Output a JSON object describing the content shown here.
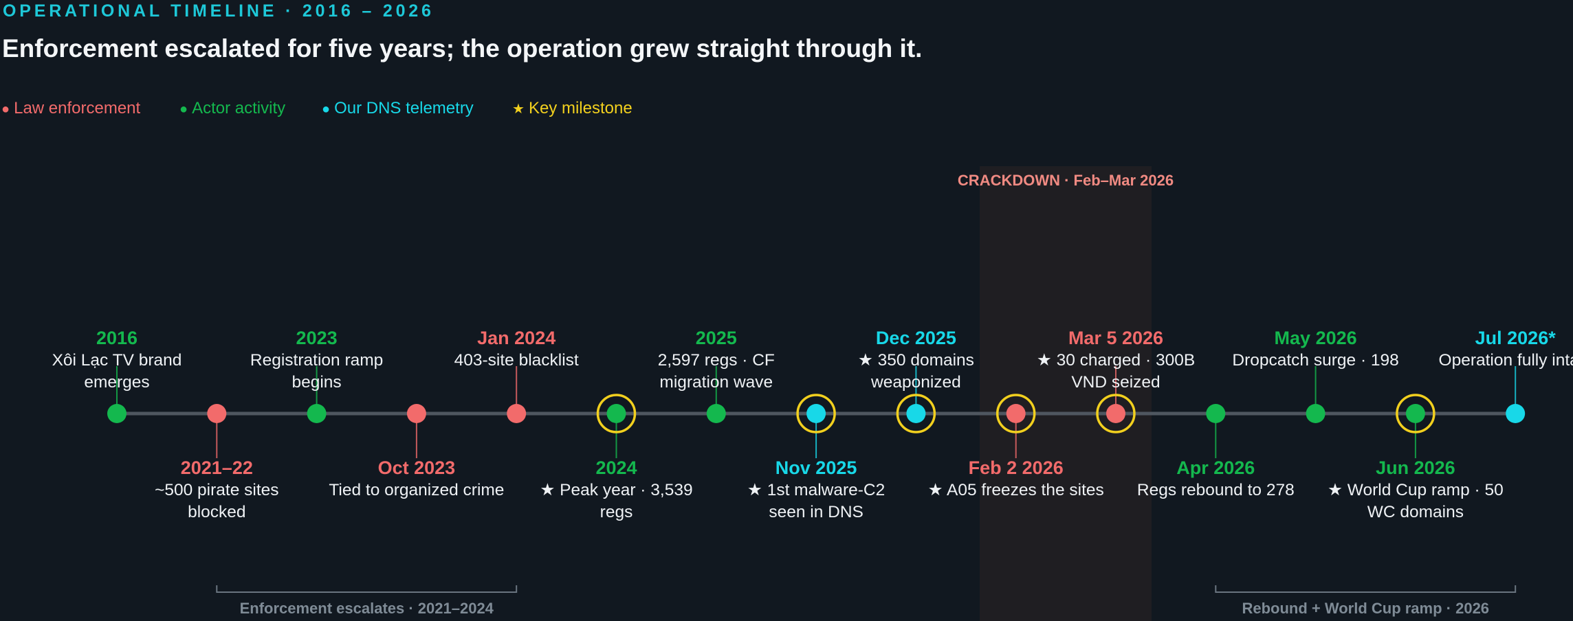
{
  "header": {
    "kicker": "OPERATIONAL TIMELINE · 2016 – 2026",
    "headline": "Enforcement escalated for five years; the operation grew straight through it."
  },
  "legend": [
    {
      "glyph": "●",
      "label": "Law enforcement",
      "color": "#f26b6b",
      "icon": "dot-icon"
    },
    {
      "glyph": "●",
      "label": "Actor activity",
      "color": "#14b84e",
      "icon": "dot-icon"
    },
    {
      "glyph": "●",
      "label": "Our DNS telemetry",
      "color": "#18d8e8",
      "icon": "dot-icon"
    },
    {
      "glyph": "★",
      "label": "Key milestone",
      "color": "#f2d01e",
      "icon": "star-icon"
    }
  ],
  "colors": {
    "law": "#f26b6b",
    "actor": "#14b84e",
    "dns": "#18d8e8",
    "milestone": "#f2d01e",
    "axis": "#4f5760",
    "background": "#111820"
  },
  "crackdown": {
    "label": "CRACKDOWN · Feb–Mar 2026"
  },
  "events": [
    {
      "date": "2016",
      "desc": "Xôi Lạc TV brand emerges",
      "category": "actor",
      "side": "above",
      "milestone": false
    },
    {
      "date": "2021–22",
      "desc": "~500 pirate sites blocked",
      "category": "law",
      "side": "below",
      "milestone": false
    },
    {
      "date": "2023",
      "desc": "Registration ramp begins",
      "category": "actor",
      "side": "above",
      "milestone": false
    },
    {
      "date": "Oct 2023",
      "desc": "Tied to organized crime",
      "category": "law",
      "side": "below",
      "milestone": false
    },
    {
      "date": "Jan 2024",
      "desc": "403-site blacklist",
      "category": "law",
      "side": "above",
      "milestone": false
    },
    {
      "date": "2024",
      "desc": "★ Peak year · 3,539 regs",
      "category": "actor",
      "side": "below",
      "milestone": true
    },
    {
      "date": "2025",
      "desc": "2,597 regs · CF migration wave",
      "category": "actor",
      "side": "above",
      "milestone": false
    },
    {
      "date": "Nov 2025",
      "desc": "★ 1st malware-C2 seen in DNS",
      "category": "dns",
      "side": "below",
      "milestone": true
    },
    {
      "date": "Dec 2025",
      "desc": "★ 350 domains weaponized",
      "category": "dns",
      "side": "above",
      "milestone": true
    },
    {
      "date": "Feb 2 2026",
      "desc": "★ A05 freezes the sites",
      "category": "law",
      "side": "below",
      "milestone": true
    },
    {
      "date": "Mar 5 2026",
      "desc": "★ 30 charged · 300B VND seized",
      "category": "law",
      "side": "above",
      "milestone": true
    },
    {
      "date": "Apr 2026",
      "desc": "Regs rebound to 278",
      "category": "actor",
      "side": "below",
      "milestone": false
    },
    {
      "date": "May 2026",
      "desc": "Dropcatch surge · 198",
      "category": "actor",
      "side": "above",
      "milestone": false
    },
    {
      "date": "Jun 2026",
      "desc": "★ World Cup ramp · 50 WC domains",
      "category": "actor",
      "side": "below",
      "milestone": true
    },
    {
      "date": "Jul 2026*",
      "desc": "Operation fully intact",
      "category": "dns",
      "side": "above",
      "milestone": false
    }
  ],
  "spans": [
    {
      "label": "Enforcement escalates · 2021–2024",
      "from_event": 1,
      "to_event": 4
    },
    {
      "label": "Rebound + World Cup ramp · 2026",
      "from_event": 11,
      "to_event": 14
    }
  ]
}
